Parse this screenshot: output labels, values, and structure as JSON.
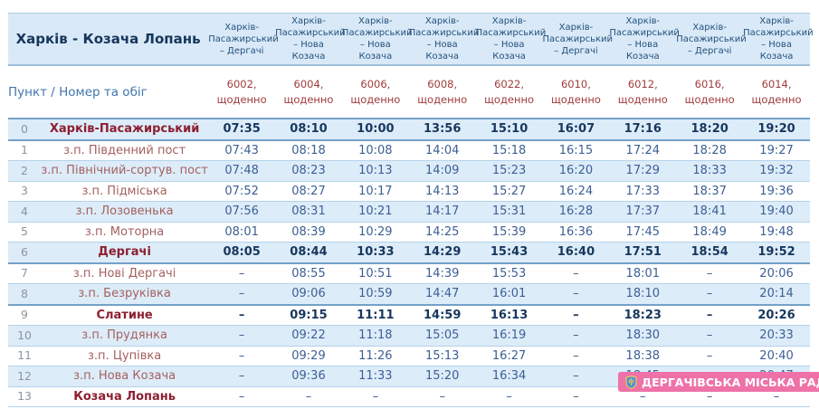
{
  "title": "Харків - Козача Лопань",
  "subheader_label": "Пункт / Номер та обіг",
  "columns": [
    {
      "route": "Харків-\nПасажирський\n– Дергачі",
      "train_number": "6002,",
      "frequency": "щоденно"
    },
    {
      "route": "Харків-\nПасажирський\n– Нова\nКозача",
      "train_number": "6004,",
      "frequency": "щоденно"
    },
    {
      "route": "Харків-\nПасажирський\n– Нова\nКозача",
      "train_number": "6006,",
      "frequency": "щоденно"
    },
    {
      "route": "Харків-\nПасажирський\n– Нова\nКозача",
      "train_number": "6008,",
      "frequency": "щоденно"
    },
    {
      "route": "Харків-\nПасажирський\n– Нова\nКозача",
      "train_number": "6022,",
      "frequency": "щоденно"
    },
    {
      "route": "Харків-\nПасажирський\n– Дергачі",
      "train_number": "6010,",
      "frequency": "щоденно"
    },
    {
      "route": "Харків-\nПасажирський\n– Нова\nКозача",
      "train_number": "6012,",
      "frequency": "щоденно"
    },
    {
      "route": "Харків-\nПасажирський\n– Дергачі",
      "train_number": "6016,",
      "frequency": "щоденно"
    },
    {
      "route": "Харків-\nПасажирський\n– Нова\nКозача",
      "train_number": "6014,",
      "frequency": "щоденно"
    }
  ],
  "rows": [
    {
      "num": "0",
      "station": "Харків-Пасажирський",
      "major": true,
      "bold_times": true,
      "times": [
        "07:35",
        "08:10",
        "10:00",
        "13:56",
        "15:10",
        "16:07",
        "17:16",
        "18:20",
        "19:20"
      ]
    },
    {
      "num": "1",
      "station": "з.п. Південний пост",
      "major": false,
      "bold_times": false,
      "times": [
        "07:43",
        "08:18",
        "10:08",
        "14:04",
        "15:18",
        "16:15",
        "17:24",
        "18:28",
        "19:27"
      ]
    },
    {
      "num": "2",
      "station": "з.п. Північний-сортув. пост",
      "major": false,
      "bold_times": false,
      "times": [
        "07:48",
        "08:23",
        "10:13",
        "14:09",
        "15:23",
        "16:20",
        "17:29",
        "18:33",
        "19:32"
      ]
    },
    {
      "num": "3",
      "station": "з.п. Підміська",
      "major": false,
      "bold_times": false,
      "times": [
        "07:52",
        "08:27",
        "10:17",
        "14:13",
        "15:27",
        "16:24",
        "17:33",
        "18:37",
        "19:36"
      ]
    },
    {
      "num": "4",
      "station": "з.п. Лозовенька",
      "major": false,
      "bold_times": false,
      "times": [
        "07:56",
        "08:31",
        "10:21",
        "14:17",
        "15:31",
        "16:28",
        "17:37",
        "18:41",
        "19:40"
      ]
    },
    {
      "num": "5",
      "station": "з.п. Моторна",
      "major": false,
      "bold_times": false,
      "times": [
        "08:01",
        "08:39",
        "10:29",
        "14:25",
        "15:39",
        "16:36",
        "17:45",
        "18:49",
        "19:48"
      ]
    },
    {
      "num": "6",
      "station": "Дергачі",
      "major": true,
      "bold_times": true,
      "times": [
        "08:05",
        "08:44",
        "10:33",
        "14:29",
        "15:43",
        "16:40",
        "17:51",
        "18:54",
        "19:52"
      ]
    },
    {
      "num": "7",
      "station": "з.п. Нові Дергачі",
      "major": false,
      "bold_times": false,
      "times": [
        "–",
        "08:55",
        "10:51",
        "14:39",
        "15:53",
        "–",
        "18:01",
        "–",
        "20:06"
      ]
    },
    {
      "num": "8",
      "station": "з.п. Безруківка",
      "major": false,
      "bold_times": false,
      "times": [
        "–",
        "09:06",
        "10:59",
        "14:47",
        "16:01",
        "–",
        "18:10",
        "–",
        "20:14"
      ]
    },
    {
      "num": "9",
      "station": "Слатине",
      "major": true,
      "bold_times": true,
      "times": [
        "–",
        "09:15",
        "11:11",
        "14:59",
        "16:13",
        "–",
        "18:23",
        "–",
        "20:26"
      ]
    },
    {
      "num": "10",
      "station": "з.п. Прудянка",
      "major": false,
      "bold_times": false,
      "times": [
        "–",
        "09:22",
        "11:18",
        "15:05",
        "16:19",
        "–",
        "18:30",
        "–",
        "20:33"
      ]
    },
    {
      "num": "11",
      "station": "з.п. Цупівка",
      "major": false,
      "bold_times": false,
      "times": [
        "–",
        "09:29",
        "11:26",
        "15:13",
        "16:27",
        "–",
        "18:38",
        "–",
        "20:40"
      ]
    },
    {
      "num": "12",
      "station": "з.п. Нова Козача",
      "major": false,
      "bold_times": false,
      "times": [
        "–",
        "09:36",
        "11:33",
        "15:20",
        "16:34",
        "–",
        "18:45",
        "–",
        "20:47"
      ]
    },
    {
      "num": "13",
      "station": "Козача Лопань",
      "major": true,
      "bold_times": false,
      "times": [
        "–",
        "–",
        "–",
        "–",
        "–",
        "–",
        "–",
        "–",
        "–"
      ]
    }
  ],
  "watermark": {
    "text": "ДЕРГАЧІВСЬКА МІСЬКА РАДА",
    "icon": "shield-emblem-icon",
    "background": "#ee72a8"
  },
  "colors": {
    "band_bg": "#d9e9f7",
    "stripe_bg": "#ddecf9",
    "title_navy": "#16365c",
    "route_navy": "#24517d",
    "train_red": "#a03c3c",
    "station_red": "#a4615f",
    "station_bold_red": "#8d1f30",
    "time_blue": "#3c5f93",
    "time_bold_navy": "#17375d",
    "punkt_blue": "#4276ad",
    "row_number_gray": "#8e959c",
    "thin_border": "#b3d2ea",
    "dark_border": "#74a1c7",
    "badge_pink": "#ee72a8"
  }
}
